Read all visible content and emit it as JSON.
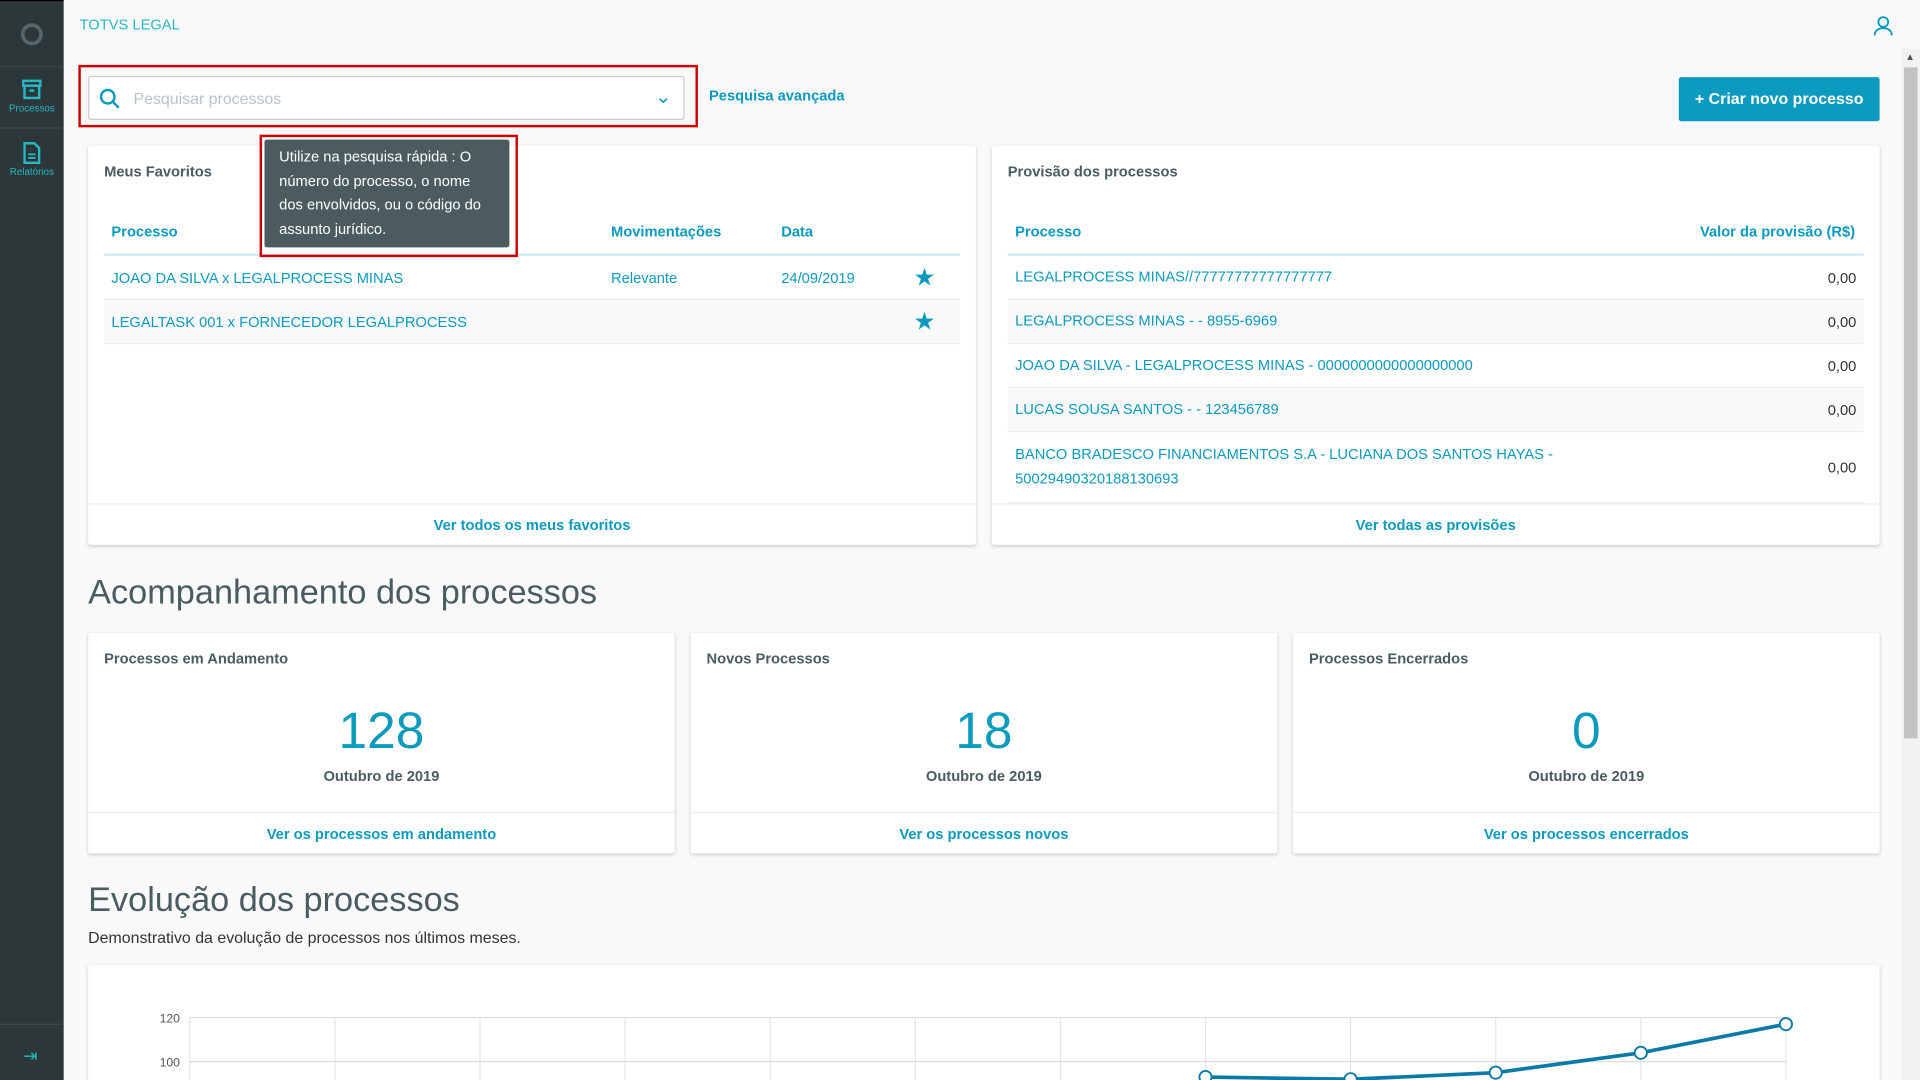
{
  "app": {
    "title": "TOTVS LEGAL"
  },
  "sidebar": {
    "items": [
      {
        "label": "Processos",
        "icon": "archive-icon"
      },
      {
        "label": "Relatórios",
        "icon": "document-icon"
      }
    ]
  },
  "search": {
    "placeholder": "Pesquisar processos",
    "advanced_label": "Pesquisa avançada",
    "tooltip": "Utilize na pesquisa rápida : O número do processo, o nome dos envolvidos, ou o código do assunto jurídico."
  },
  "create_button": "+ Criar novo processo",
  "favorites": {
    "title": "Meus Favoritos",
    "columns": [
      "Processo",
      "Movimentações",
      "Data"
    ],
    "rows": [
      {
        "processo": "JOAO DA SILVA x LEGALPROCESS MINAS",
        "mov": "Relevante",
        "data": "24/09/2019"
      },
      {
        "processo": "LEGALTASK 001 x FORNECEDOR LEGALPROCESS",
        "mov": "",
        "data": ""
      }
    ],
    "footer": "Ver todos os meus favoritos"
  },
  "provisions": {
    "title": "Provisão dos processos",
    "columns": [
      "Processo",
      "Valor da provisão (R$)"
    ],
    "rows": [
      {
        "processo": "LEGALPROCESS MINAS//77777777777777777",
        "valor": "0,00"
      },
      {
        "processo": "LEGALPROCESS MINAS - - 8955-6969",
        "valor": "0,00"
      },
      {
        "processo": "JOAO DA SILVA - LEGALPROCESS MINAS - 0000000000000000000",
        "valor": "0,00"
      },
      {
        "processo": "LUCAS SOUSA SANTOS - - 123456789",
        "valor": "0,00"
      },
      {
        "processo": "BANCO BRADESCO FINANCIAMENTOS S.A - LUCIANA DOS SANTOS HAYAS - 50029490320188130693",
        "valor": "0,00"
      }
    ],
    "footer": "Ver todas as provisões"
  },
  "tracking": {
    "title": "Acompanhamento dos processos",
    "cards": [
      {
        "title": "Processos em Andamento",
        "value": "128",
        "period": "Outubro de 2019",
        "link": "Ver os processos em andamento"
      },
      {
        "title": "Novos Processos",
        "value": "18",
        "period": "Outubro de 2019",
        "link": "Ver os processos novos"
      },
      {
        "title": "Processos Encerrados",
        "value": "0",
        "period": "Outubro de 2019",
        "link": "Ver os processos encerrados"
      }
    ]
  },
  "evolution": {
    "title": "Evolução dos processos",
    "subtitle": "Demonstrativo da evolução de processos nos últimos meses."
  },
  "chart_data": {
    "type": "line",
    "y_ticks": [
      100,
      120
    ],
    "values": [
      null,
      null,
      null,
      null,
      null,
      null,
      null,
      93,
      92,
      95,
      104,
      117
    ],
    "grid": true,
    "color": "#0c7aa6"
  }
}
